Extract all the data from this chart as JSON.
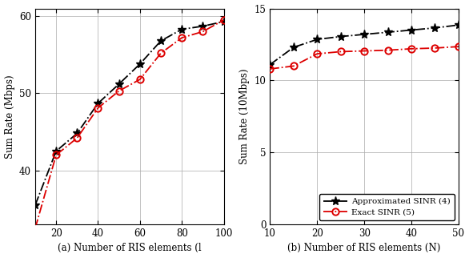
{
  "left": {
    "x_approx": [
      10,
      20,
      30,
      40,
      50,
      60,
      70,
      80,
      90,
      100
    ],
    "y_approx": [
      35.5,
      42.5,
      44.8,
      48.7,
      51.2,
      53.8,
      56.8,
      58.3,
      58.7,
      59.3
    ],
    "x_exact": [
      10,
      20,
      30,
      40,
      50,
      60,
      70,
      80,
      90,
      100
    ],
    "y_exact": [
      32.5,
      42.0,
      44.2,
      48.1,
      50.3,
      51.8,
      55.2,
      57.2,
      58.0,
      59.5
    ],
    "xlabel": "(a) Number of RIS elements (l",
    "ylabel": "Sum Rate (Mbps)",
    "xlim": [
      10,
      100
    ],
    "ylim": [
      33,
      61
    ],
    "yticks": [
      40,
      50,
      60
    ],
    "xticks": [
      20,
      40,
      60,
      80,
      100
    ]
  },
  "right": {
    "x_approx": [
      10,
      15,
      20,
      25,
      30,
      35,
      40,
      45,
      50
    ],
    "y_approx": [
      11.1,
      12.3,
      12.85,
      13.05,
      13.2,
      13.35,
      13.5,
      13.65,
      13.85
    ],
    "x_exact": [
      10,
      15,
      20,
      25,
      30,
      35,
      40,
      45,
      50
    ],
    "y_exact": [
      10.8,
      11.0,
      11.85,
      12.0,
      12.05,
      12.1,
      12.2,
      12.25,
      12.35
    ],
    "xlabel": "(b) Number of RIS elements (N)",
    "ylabel": "Sum Rate (10Mbps)",
    "xlim": [
      10,
      50
    ],
    "ylim": [
      0,
      15
    ],
    "yticks": [
      0,
      5,
      10,
      15
    ],
    "xticks": [
      10,
      20,
      30,
      40,
      50
    ]
  },
  "legend": {
    "approx_label": "Approximated SINR (4)",
    "exact_label": "Exact SINR (5)"
  },
  "approx_color": "#000000",
  "exact_color": "#dd0000",
  "approx_marker": "*",
  "exact_marker": "o",
  "marker_size_star": 8,
  "marker_size_circle": 6,
  "linewidth": 1.3,
  "grid": true,
  "background": "#ffffff"
}
